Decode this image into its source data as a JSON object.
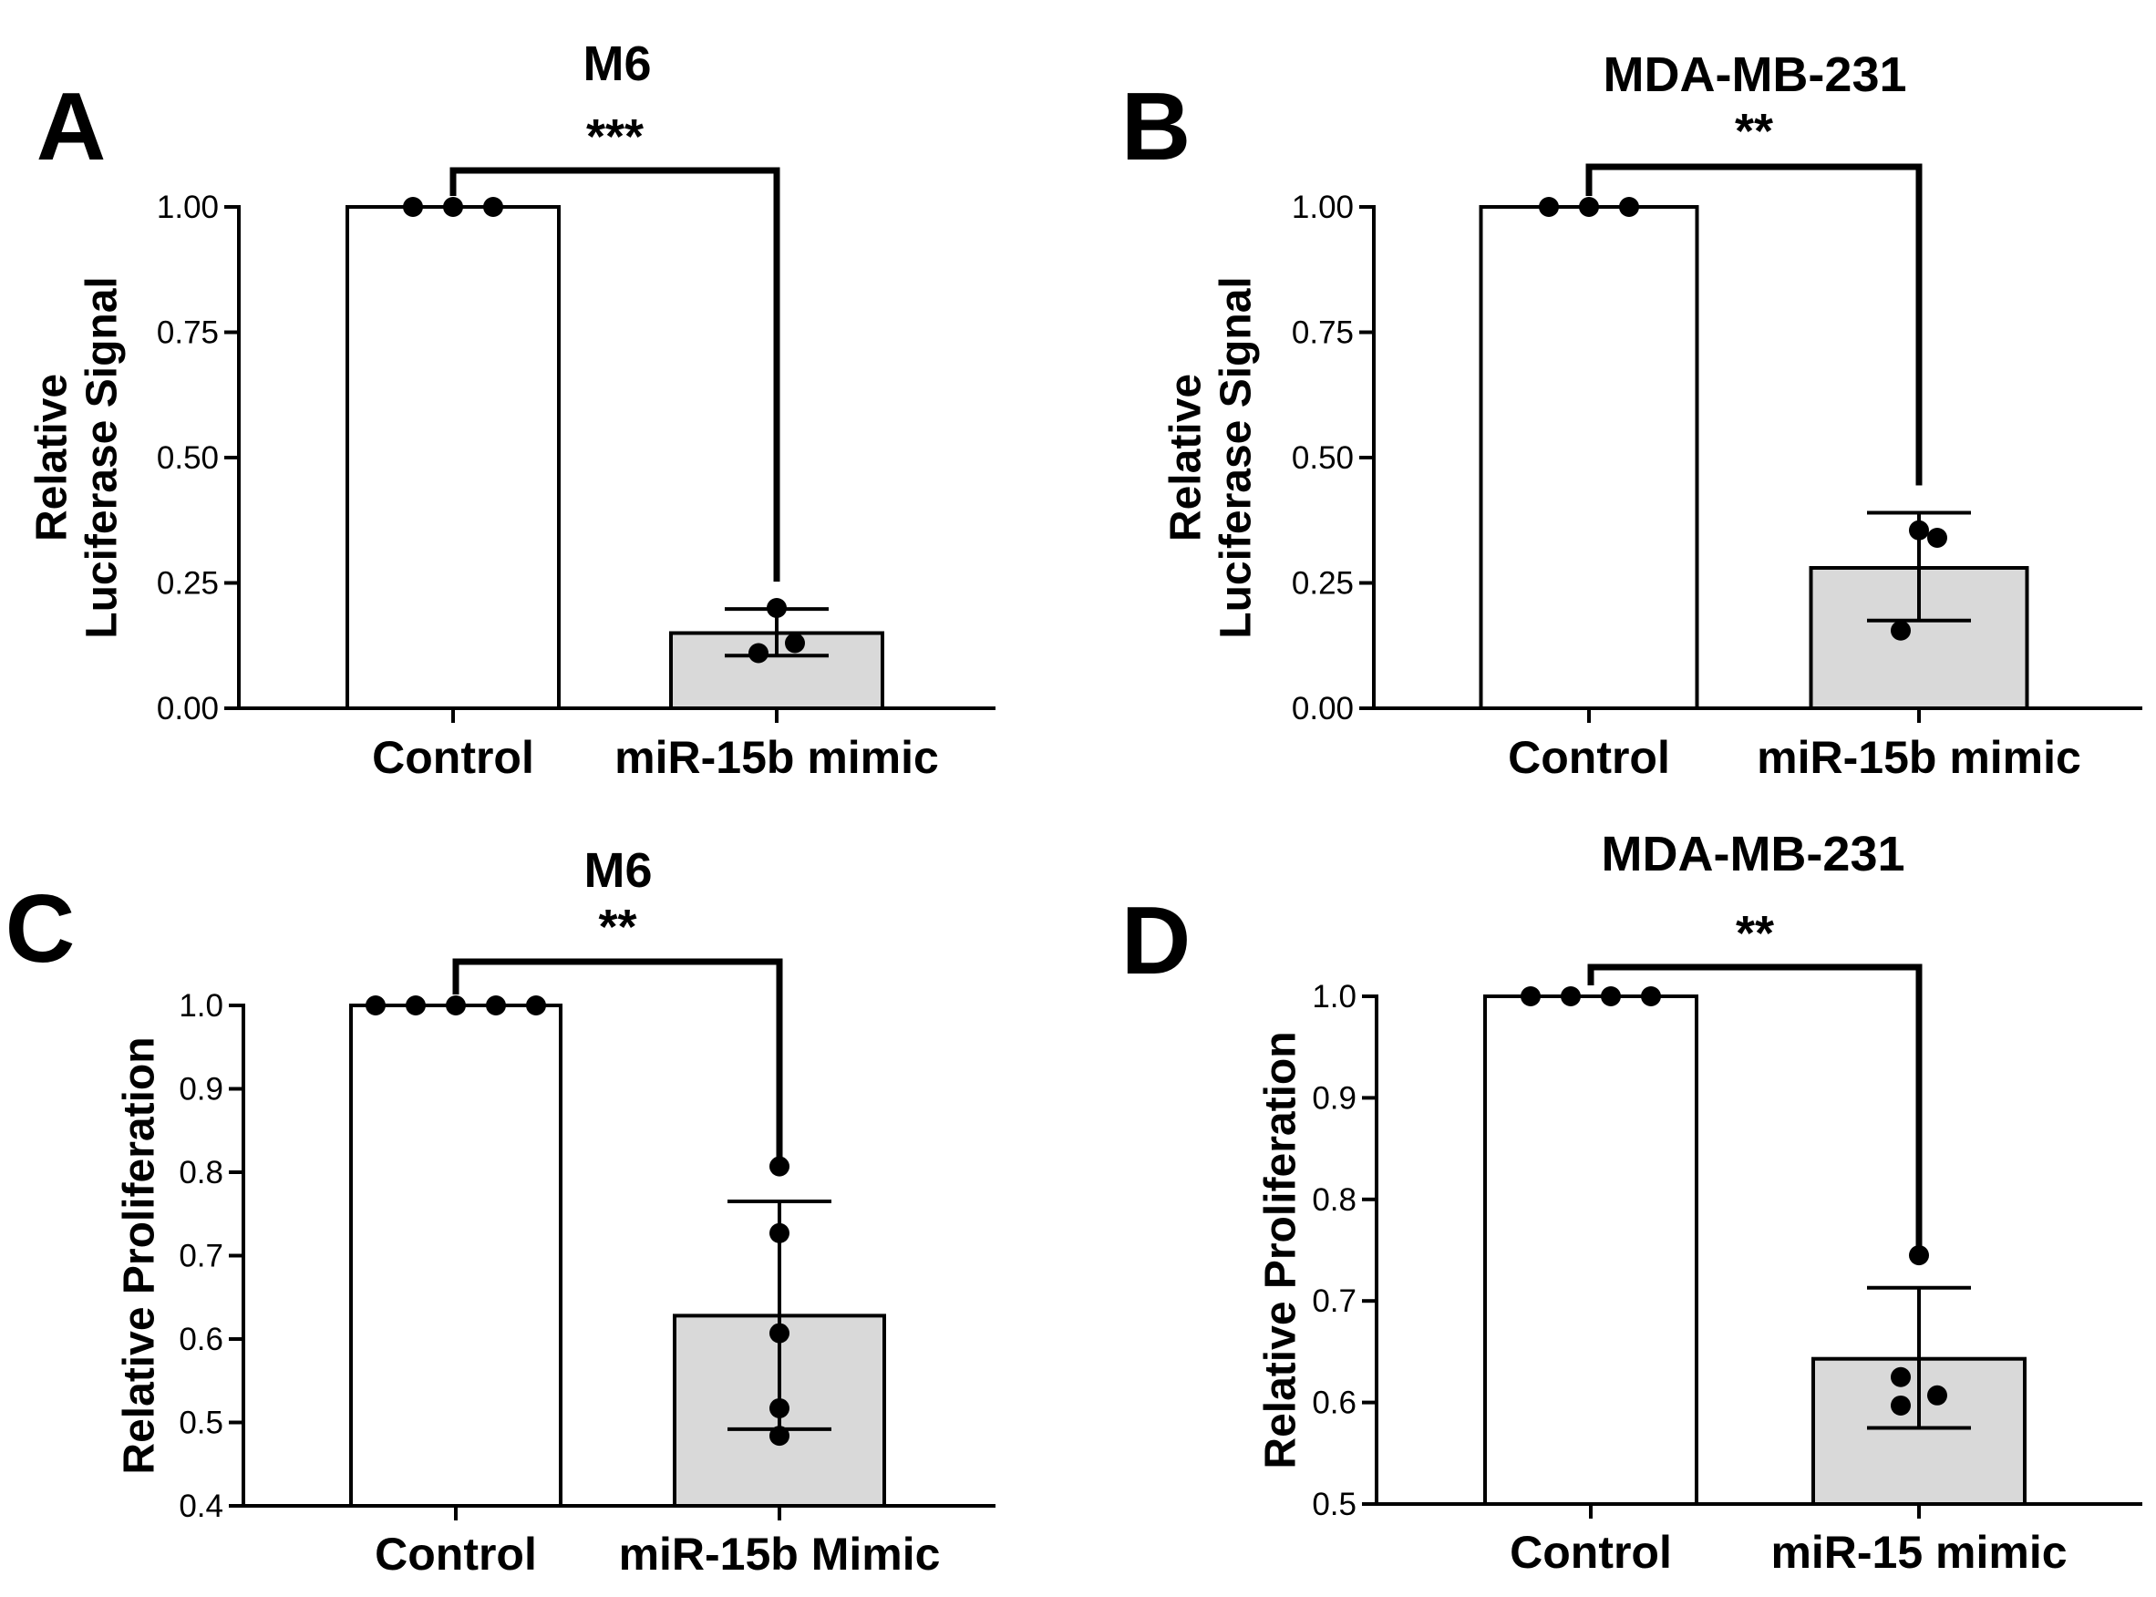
{
  "chart_data": [
    {
      "panel": "A",
      "type": "bar",
      "title": "M6",
      "ylabel_lines": [
        "Relative",
        "Luciferase Signal"
      ],
      "xlabel": "",
      "categories": [
        "Control",
        "miR-15b mimic"
      ],
      "values": [
        1.0,
        0.15
      ],
      "error_bars": [
        null,
        [
          0.105,
          0.198
        ]
      ],
      "points": [
        [
          1.0,
          1.0,
          1.0
        ],
        [
          0.2,
          0.13,
          0.11
        ]
      ],
      "ylim": [
        0,
        1.0
      ],
      "yticks": [
        "0.00",
        "0.25",
        "0.50",
        "0.75",
        "1.00"
      ],
      "significance": "***",
      "bar_colors": [
        "#ffffff",
        "#d9d9d9"
      ]
    },
    {
      "panel": "B",
      "type": "bar",
      "title": "MDA-MB-231",
      "ylabel_lines": [
        "Relative",
        "Luciferase Signal"
      ],
      "xlabel": "",
      "categories": [
        "Control",
        "miR-15b mimic"
      ],
      "values": [
        1.0,
        0.28
      ],
      "error_bars": [
        null,
        [
          0.175,
          0.39
        ]
      ],
      "points": [
        [
          1.0,
          1.0,
          1.0
        ],
        [
          0.355,
          0.34,
          0.155
        ]
      ],
      "ylim": [
        0,
        1.0
      ],
      "yticks": [
        "0.00",
        "0.25",
        "0.50",
        "0.75",
        "1.00"
      ],
      "significance": "**",
      "bar_colors": [
        "#ffffff",
        "#d9d9d9"
      ]
    },
    {
      "panel": "C",
      "type": "bar",
      "title": "M6",
      "ylabel_lines": [
        "Relative Proliferation"
      ],
      "xlabel": "",
      "categories": [
        "Control",
        "miR-15b Mimic"
      ],
      "values": [
        1.0,
        0.628
      ],
      "error_bars": [
        null,
        [
          0.492,
          0.765
        ]
      ],
      "points": [
        [
          1.0,
          1.0,
          1.0,
          1.0,
          1.0
        ],
        [
          0.807,
          0.727,
          0.607,
          0.517,
          0.484
        ]
      ],
      "ylim": [
        0.4,
        1.0
      ],
      "yticks": [
        "0.4",
        "0.5",
        "0.6",
        "0.7",
        "0.8",
        "0.9",
        "1.0"
      ],
      "significance": "**",
      "bar_colors": [
        "#ffffff",
        "#d9d9d9"
      ]
    },
    {
      "panel": "D",
      "type": "bar",
      "title": "MDA-MB-231",
      "ylabel_lines": [
        "Relative Proliferation"
      ],
      "xlabel": "",
      "categories": [
        "Control",
        "miR-15 mimic"
      ],
      "values": [
        1.0,
        0.643
      ],
      "error_bars": [
        null,
        [
          0.575,
          0.713
        ]
      ],
      "points": [
        [
          1.0,
          1.0,
          1.0,
          1.0
        ],
        [
          0.745,
          0.625,
          0.607,
          0.597
        ]
      ],
      "ylim": [
        0.5,
        1.0
      ],
      "yticks": [
        "0.5",
        "0.6",
        "0.7",
        "0.8",
        "0.9",
        "1.0"
      ],
      "significance": "**",
      "bar_colors": [
        "#ffffff",
        "#d9d9d9"
      ]
    }
  ]
}
